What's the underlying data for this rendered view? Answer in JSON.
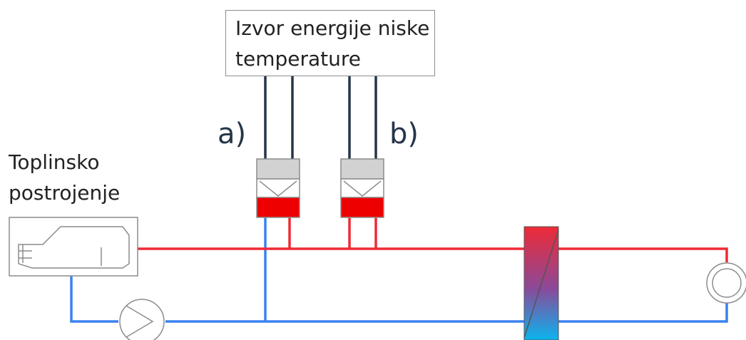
{
  "source": {
    "label_line1": "Izvor energije niske",
    "label_line2": "temperature"
  },
  "plant": {
    "label_line1": "Toplinsko",
    "label_line2": "postrojenje"
  },
  "variants": {
    "a": "a)",
    "b": "b)"
  },
  "colors": {
    "supply_pipe": "#ee2a36",
    "return_pipe": "#3a82f0",
    "source_pipe": "#263548",
    "unit_top": "#d2d2d2",
    "unit_bottom": "#ee0000",
    "outline": "#8c8c8c"
  },
  "icons": [
    "boiler-icon",
    "pump-icon",
    "heat-exchanger-icon",
    "consumer-icon",
    "heat-pump-icon"
  ]
}
